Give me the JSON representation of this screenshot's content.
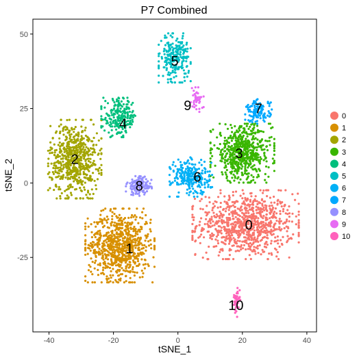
{
  "chart_data": {
    "type": "scatter",
    "title": "P7 Combined",
    "xlabel": "tSNE_1",
    "ylabel": "tSNE_2",
    "xlim": [
      -45,
      43
    ],
    "ylim": [
      -50,
      55
    ],
    "xticks": [
      -40,
      -20,
      0,
      20,
      40
    ],
    "yticks": [
      -25,
      0,
      25,
      50
    ],
    "xtick_labels": [
      "-40",
      "-20",
      "0",
      "20",
      "40"
    ],
    "ytick_labels": [
      "-25",
      "0",
      "25",
      "50"
    ],
    "legend_position": "right",
    "grid": false,
    "clusters": [
      {
        "label": "0",
        "color": "#F8766D",
        "center": [
          21,
          -14
        ],
        "spread": [
          10,
          7
        ],
        "n": 900,
        "label_pos": [
          22,
          -14
        ]
      },
      {
        "label": "1",
        "color": "#D89000",
        "center": [
          -18,
          -21
        ],
        "spread": [
          6.5,
          7.5
        ],
        "n": 800,
        "label_pos": [
          -15,
          -22
        ]
      },
      {
        "label": "2",
        "color": "#A3A500",
        "center": [
          -32,
          8
        ],
        "spread": [
          5,
          8
        ],
        "n": 650,
        "label_pos": [
          -32,
          8
        ]
      },
      {
        "label": "3",
        "color": "#39B600",
        "center": [
          20,
          10
        ],
        "spread": [
          6,
          6
        ],
        "n": 600,
        "label_pos": [
          19,
          10
        ]
      },
      {
        "label": "4",
        "color": "#00BF7D",
        "center": [
          -18,
          22
        ],
        "spread": [
          3.5,
          4
        ],
        "n": 220,
        "label_pos": [
          -17,
          20
        ]
      },
      {
        "label": "5",
        "color": "#00BFC4",
        "center": [
          -1,
          42
        ],
        "spread": [
          3,
          5
        ],
        "n": 230,
        "label_pos": [
          -1,
          41
        ]
      },
      {
        "label": "6",
        "color": "#00B0F6",
        "center": [
          4,
          2
        ],
        "spread": [
          4,
          4
        ],
        "n": 250,
        "label_pos": [
          6,
          2
        ]
      },
      {
        "label": "7",
        "color": "#00A9FF",
        "center": [
          25,
          24
        ],
        "spread": [
          2.5,
          2.5
        ],
        "n": 120,
        "label_pos": [
          25,
          25
        ]
      },
      {
        "label": "8",
        "color": "#9590FF",
        "center": [
          -12,
          -1
        ],
        "spread": [
          2.5,
          2
        ],
        "n": 120,
        "label_pos": [
          -12,
          -1
        ]
      },
      {
        "label": "9",
        "color": "#E76BF3",
        "center": [
          6,
          28
        ],
        "spread": [
          1.2,
          2.5
        ],
        "n": 40,
        "label_pos": [
          3,
          26
        ]
      },
      {
        "label": "10",
        "color": "#FF62BC",
        "center": [
          18,
          -40
        ],
        "spread": [
          0.8,
          3
        ],
        "n": 40,
        "label_pos": [
          18,
          -41
        ]
      }
    ]
  }
}
